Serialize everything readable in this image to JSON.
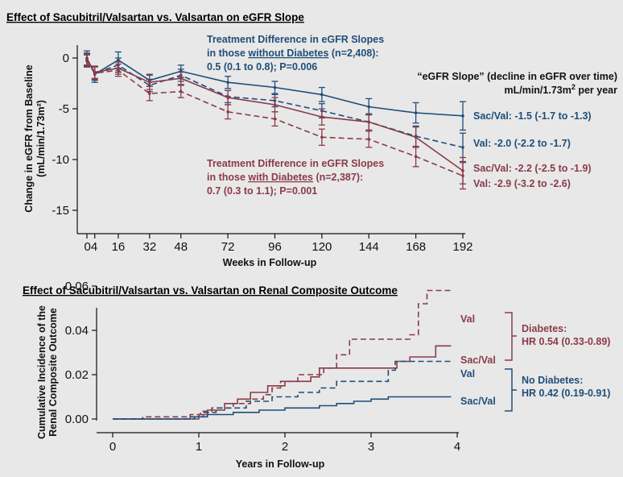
{
  "colors": {
    "no_diabetes": "#1f4e79",
    "diabetes": "#8b3a4a",
    "background": "#e8e8e8"
  },
  "chart_data": [
    {
      "type": "line",
      "title": "Effect of Sacubitril/Valsartan vs. Valsartan on eGFR Slope",
      "xlabel": "Weeks in Follow-up",
      "ylabel_line1": "Change in eGFR from Baseline",
      "ylabel_line2": "(mL/min/1.73m²)",
      "x_ticks": [
        "0",
        "4",
        "16",
        "32",
        "48",
        "72",
        "96",
        "120",
        "144",
        "168",
        "192"
      ],
      "x_tick_labels": [
        "04",
        "16",
        "32",
        "48",
        "72",
        "96",
        "120",
        "144",
        "168",
        "192"
      ],
      "y_ticks": [
        "0",
        "-5",
        "-10",
        "-15"
      ],
      "xlim": [
        0,
        192
      ],
      "ylim": [
        -17,
        1
      ],
      "x": [
        0,
        4,
        16,
        32,
        48,
        72,
        96,
        120,
        144,
        168,
        192
      ],
      "series": [
        {
          "name": "Sac/Val (no diabetes)",
          "group": "no_diabetes",
          "dash": "solid",
          "values": [
            0.0,
            -1.6,
            -0.2,
            -2.2,
            -1.3,
            -2.4,
            -2.9,
            -3.6,
            -4.8,
            -5.4,
            -5.7
          ],
          "err": [
            0.7,
            0.8,
            0.8,
            0.6,
            0.6,
            0.6,
            0.6,
            0.7,
            0.8,
            1.0,
            1.4
          ]
        },
        {
          "name": "Val (no diabetes)",
          "group": "no_diabetes",
          "dash": "dashed",
          "values": [
            -0.2,
            -1.5,
            -0.7,
            -2.7,
            -1.7,
            -3.8,
            -4.2,
            -5.2,
            -6.3,
            -7.7,
            -8.8
          ],
          "err": [
            0.6,
            0.7,
            0.7,
            0.6,
            0.6,
            0.6,
            0.6,
            0.7,
            0.8,
            1.0,
            1.4
          ]
        },
        {
          "name": "Sac/Val (diabetes)",
          "group": "diabetes",
          "dash": "solid",
          "values": [
            -0.1,
            -1.4,
            -1.0,
            -2.4,
            -2.0,
            -3.9,
            -4.6,
            -5.8,
            -6.3,
            -7.8,
            -11.1
          ],
          "err": [
            0.6,
            0.6,
            0.6,
            0.7,
            0.6,
            0.7,
            0.7,
            0.8,
            0.8,
            1.0,
            1.3
          ]
        },
        {
          "name": "Val (diabetes)",
          "group": "diabetes",
          "dash": "dashed",
          "values": [
            -0.3,
            -1.5,
            -1.2,
            -3.5,
            -3.3,
            -5.3,
            -6.0,
            -7.8,
            -8.0,
            -9.7,
            -11.6
          ],
          "err": [
            0.6,
            0.6,
            0.6,
            0.7,
            0.6,
            0.7,
            0.7,
            0.8,
            0.8,
            1.0,
            1.3
          ]
        }
      ],
      "annotations": {
        "nodiab_diff_line1": "Treatment Difference in eGFR Slopes",
        "nodiab_diff_line2_pre": "in those ",
        "nodiab_diff_line2_ul": "without Diabetes",
        "nodiab_diff_line2_post": " (n=2,408):",
        "nodiab_diff_line3": "0.5 (0.1 to 0.8); P=0.006",
        "diab_diff_line1": "Treatment Difference in eGFR Slopes",
        "diab_diff_line2_pre": "in those ",
        "diab_diff_line2_ul": "with Diabetes",
        "diab_diff_line2_post": " (n=2,387):",
        "diab_diff_line3": "0.7 (0.3 to 1.1); P=0.001",
        "slope_header_line1": "“eGFR Slope” (decline in eGFR over time)",
        "slope_header_line2": "mL/min/1.73m² per year",
        "label_sacval_nodiab": "Sac/Val: -1.5 (-1.7 to -1.3)",
        "label_val_nodiab": "Val: -2.0 (-2.2 to -1.7)",
        "label_sacval_diab": "Sac/Val: -2.2 (-2.5 to -1.9)",
        "label_val_diab": "Val: -2.9 (-3.2 to -2.6)"
      }
    },
    {
      "type": "line",
      "step": true,
      "title": "Effect of Sacubitril/Valsartan vs. Valsartan on Renal Composite Outcome",
      "xlabel": "Years in Follow-up",
      "ylabel_line1": "Cumulative Incidence of the",
      "ylabel_line2": "Renal Composite Outcome",
      "x_ticks": [
        "0",
        "1",
        "2",
        "3",
        "4"
      ],
      "y_ticks": [
        "0.00",
        "0.02",
        "0.04",
        "0.06"
      ],
      "xlim": [
        -0.2,
        4.1
      ],
      "ylim": [
        -0.002,
        0.062
      ],
      "series": [
        {
          "name": "Val",
          "group": "diabetes",
          "dash": "dashed",
          "points": [
            [
              0,
              0
            ],
            [
              0.35,
              0.001
            ],
            [
              0.9,
              0.002
            ],
            [
              1.02,
              0.0035
            ],
            [
              1.15,
              0.005
            ],
            [
              1.4,
              0.007
            ],
            [
              1.6,
              0.009
            ],
            [
              1.75,
              0.011
            ],
            [
              1.85,
              0.014
            ],
            [
              1.95,
              0.017
            ],
            [
              2.15,
              0.02
            ],
            [
              2.45,
              0.023
            ],
            [
              2.6,
              0.029
            ],
            [
              2.75,
              0.036
            ],
            [
              3.45,
              0.038
            ],
            [
              3.55,
              0.052
            ],
            [
              3.65,
              0.058
            ],
            [
              3.93,
              0.058
            ]
          ]
        },
        {
          "name": "Sac/Val",
          "group": "diabetes",
          "dash": "solid",
          "points": [
            [
              0,
              0
            ],
            [
              1.0,
              0.002
            ],
            [
              1.1,
              0.004
            ],
            [
              1.3,
              0.007
            ],
            [
              1.45,
              0.009
            ],
            [
              1.6,
              0.012
            ],
            [
              1.8,
              0.015
            ],
            [
              2.0,
              0.017
            ],
            [
              2.3,
              0.019
            ],
            [
              2.4,
              0.023
            ],
            [
              3.3,
              0.026
            ],
            [
              3.45,
              0.028
            ],
            [
              3.75,
              0.033
            ],
            [
              3.93,
              0.033
            ]
          ]
        },
        {
          "name": "Val",
          "group": "no_diabetes",
          "dash": "dashed",
          "points": [
            [
              0,
              0
            ],
            [
              0.95,
              0.001
            ],
            [
              1.05,
              0.003
            ],
            [
              1.2,
              0.005
            ],
            [
              1.55,
              0.008
            ],
            [
              1.85,
              0.01
            ],
            [
              2.15,
              0.012
            ],
            [
              2.4,
              0.014
            ],
            [
              2.6,
              0.017
            ],
            [
              3.2,
              0.022
            ],
            [
              3.28,
              0.026
            ],
            [
              3.93,
              0.026
            ]
          ]
        },
        {
          "name": "Sac/Val",
          "group": "no_diabetes",
          "dash": "solid",
          "points": [
            [
              0,
              0
            ],
            [
              0.9,
              0.001
            ],
            [
              1.1,
              0.002
            ],
            [
              1.4,
              0.003
            ],
            [
              1.7,
              0.004
            ],
            [
              2.0,
              0.005
            ],
            [
              2.4,
              0.006
            ],
            [
              2.6,
              0.007
            ],
            [
              2.8,
              0.008
            ],
            [
              3.0,
              0.009
            ],
            [
              3.2,
              0.01
            ],
            [
              3.93,
              0.01
            ]
          ]
        }
      ],
      "labels": {
        "val_diab": "Val",
        "sacval_diab": "Sac/Val",
        "val_nodiab": "Val",
        "sacval_nodiab": "Sac/Val",
        "diab_hr_line1": "Diabetes:",
        "diab_hr_line2": "HR 0.54 (0.33-0.89)",
        "nodiab_hr_line1": "No Diabetes:",
        "nodiab_hr_line2": "HR 0.42 (0.19-0.91)"
      }
    }
  ]
}
